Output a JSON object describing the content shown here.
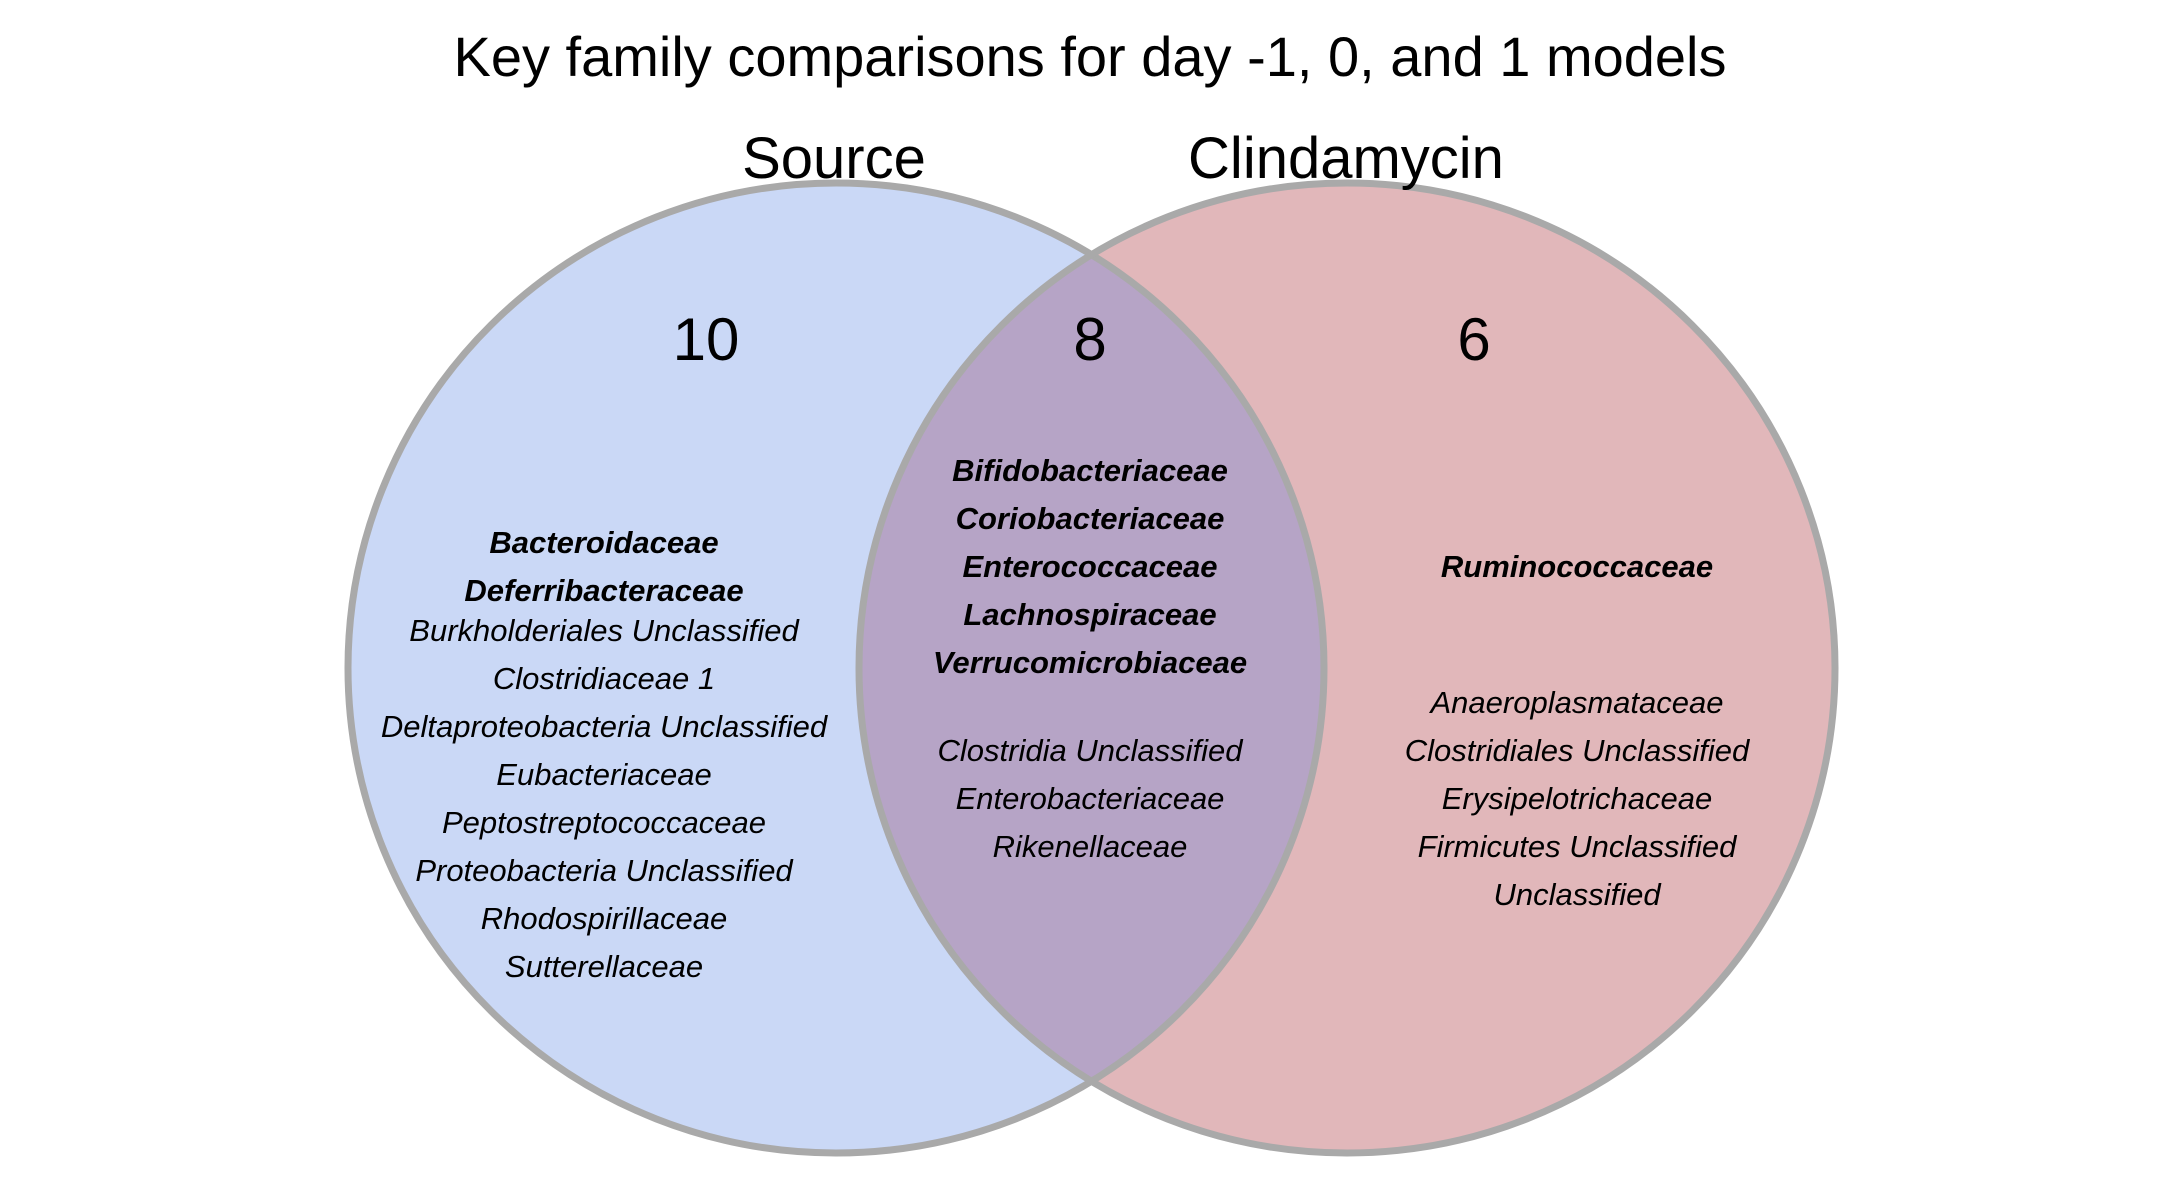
{
  "title": "Key family comparisons for day -1, 0, and 1 models",
  "sets": {
    "left": {
      "label": "Source",
      "color": "#cad8f6"
    },
    "right": {
      "label": "Clindamycin",
      "color": "#e1b7ba"
    },
    "overlap_color": "#b6a4c6",
    "outline_color": "#a9a9a9"
  },
  "regions": {
    "left_only": {
      "count": "10",
      "bold": [
        "Bacteroidaceae",
        "Deferribacteraceae"
      ],
      "regular": [
        "Burkholderiales Unclassified",
        "Clostridiaceae 1",
        "Deltaproteobacteria Unclassified",
        "Eubacteriaceae",
        "Peptostreptococcaceae",
        "Proteobacteria Unclassified",
        "Rhodospirillaceae",
        "Sutterellaceae"
      ]
    },
    "overlap": {
      "count": "8",
      "bold": [
        "Bifidobacteriaceae",
        "Coriobacteriaceae",
        "Enterococcaceae",
        "Lachnospiraceae",
        "Verrucomicrobiaceae"
      ],
      "regular": [
        "Clostridia Unclassified",
        "Enterobacteriaceae",
        "Rikenellaceae"
      ]
    },
    "right_only": {
      "count": "6",
      "bold": [
        "Ruminococcaceae"
      ],
      "regular": [
        "Anaeroplasmataceae",
        "Clostridiales Unclassified",
        "Erysipelotrichaceae",
        "Firmicutes Unclassified",
        "Unclassified"
      ]
    }
  }
}
